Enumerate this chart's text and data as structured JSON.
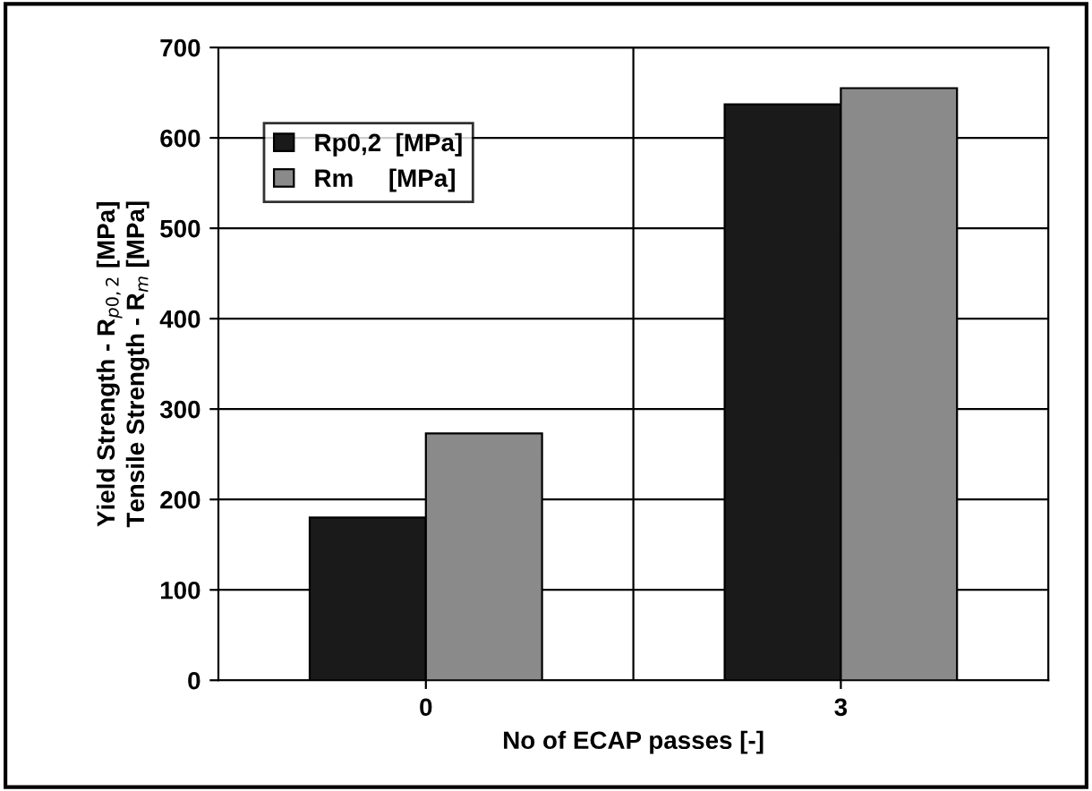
{
  "chart_data": {
    "type": "bar",
    "xlabel": "No of ECAP passes [-]",
    "ylabel": "Yield Strength - R$_{p0,2}$ [MPa]\nTensile Strength - R$_{m}$ [MPa]",
    "categories": [
      "0",
      "3"
    ],
    "series": [
      {
        "name": "Rp0,2  [MPa]",
        "color": "#1a1a1a",
        "values": [
          180,
          637
        ]
      },
      {
        "name": "Rm     [MPa]",
        "color": "#8a8a8a",
        "values": [
          273,
          655
        ]
      }
    ],
    "ylim": [
      0,
      700
    ],
    "yticks": [
      0,
      100,
      200,
      300,
      400,
      500,
      600,
      700
    ],
    "grid": true,
    "legend": "top left"
  }
}
